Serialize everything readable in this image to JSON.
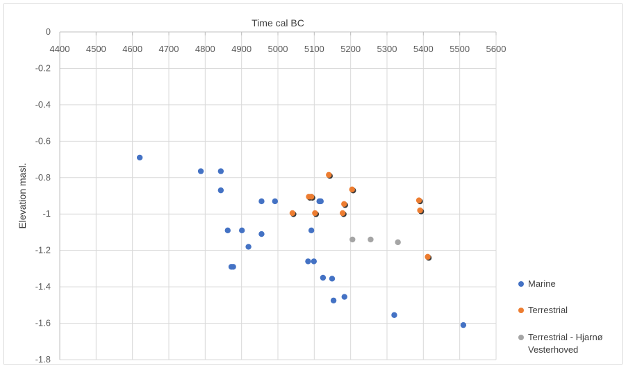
{
  "chart_data": {
    "type": "scatter",
    "title": "",
    "xlabel": "Time cal BC",
    "ylabel": "Elevation masl.",
    "xlim": [
      4400,
      5600
    ],
    "ylim": [
      -1.8,
      0
    ],
    "x_ticks": [
      "4400",
      "4500",
      "4600",
      "4700",
      "4800",
      "4900",
      "5000",
      "5100",
      "5200",
      "5300",
      "5400",
      "5500",
      "5600"
    ],
    "y_ticks": [
      "0",
      "-0.2",
      "-0.4",
      "-0.6",
      "-0.8",
      "-1",
      "-1.2",
      "-1.4",
      "-1.6",
      "-1.8"
    ],
    "grid": true,
    "x_axis_position": "top",
    "legend_position": "right",
    "series": [
      {
        "name": "Marine",
        "color": "#4472c4",
        "points": [
          [
            4620,
            -0.69
          ],
          [
            4788,
            -0.765
          ],
          [
            4843,
            -0.765
          ],
          [
            4843,
            -0.87
          ],
          [
            4955,
            -0.93
          ],
          [
            4992,
            -0.93
          ],
          [
            4862,
            -1.09
          ],
          [
            4901,
            -1.09
          ],
          [
            4955,
            -1.11
          ],
          [
            4919,
            -1.18
          ],
          [
            4872,
            -1.29
          ],
          [
            4877,
            -1.29
          ],
          [
            5092,
            -0.905
          ],
          [
            5114,
            -0.93
          ],
          [
            5118,
            -0.93
          ],
          [
            5092,
            -1.09
          ],
          [
            5083,
            -1.26
          ],
          [
            5099,
            -1.26
          ],
          [
            5124,
            -1.35
          ],
          [
            5149,
            -1.355
          ],
          [
            5153,
            -1.475
          ],
          [
            5183,
            -1.455
          ],
          [
            5320,
            -1.555
          ],
          [
            5510,
            -1.61
          ]
        ]
      },
      {
        "name": "Terrestrial",
        "color": "#ed7d31",
        "points": [
          [
            5140,
            -0.785
          ],
          [
            5085,
            -0.905
          ],
          [
            5092,
            -0.905
          ],
          [
            5204,
            -0.865
          ],
          [
            5040,
            -0.995
          ],
          [
            5102,
            -0.995
          ],
          [
            5182,
            -0.945
          ],
          [
            5178,
            -0.995
          ],
          [
            5388,
            -0.925
          ],
          [
            5391,
            -0.98
          ],
          [
            5412,
            -1.235
          ]
        ]
      },
      {
        "name": "Terrestrial - Hjarnø Vesterhoved",
        "legend_lines": [
          "Terrestrial - Hjarnø",
          "Vesterhoved"
        ],
        "color": "#a5a5a5",
        "points": [
          [
            5205,
            -1.14
          ],
          [
            5255,
            -1.14
          ],
          [
            5330,
            -1.155
          ]
        ]
      }
    ]
  }
}
